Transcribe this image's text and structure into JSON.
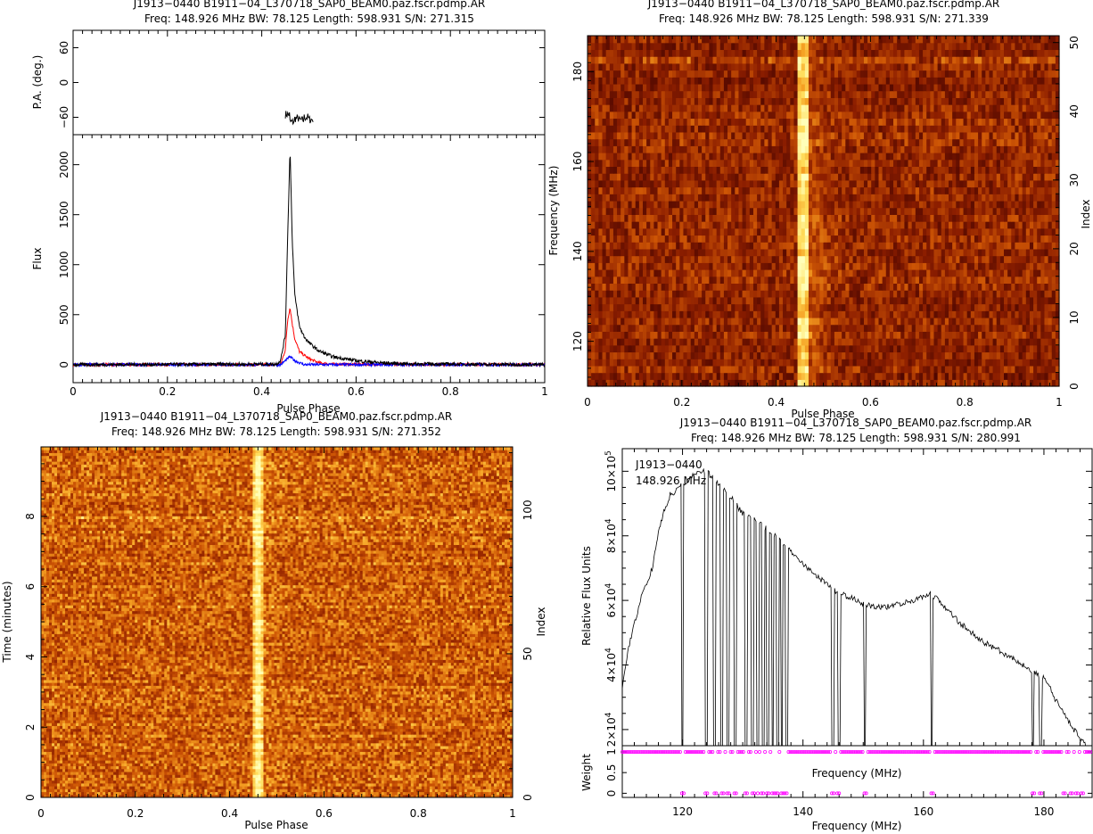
{
  "figures": {
    "profile": {
      "title": "J1913−0440 B1911−04_L370718_SAP0_BEAM0.paz.fscr.pdmp.AR",
      "subtitle": "Freq: 148.926 MHz BW: 78.125 Length: 598.931 S/N: 271.315"
    },
    "freq_phase": {
      "title": "J1913−0440 B1911−04_L370718_SAP0_BEAM0.paz.fscr.pdmp.AR",
      "subtitle": "Freq: 148.926 MHz BW: 78.125 Length: 598.931 S/N: 271.339"
    },
    "time_phase": {
      "title": "J1913−0440 B1911−04_L370718_SAP0_BEAM0.paz.fscr.pdmp.AR",
      "subtitle": "Freq: 148.926 MHz BW: 78.125 Length: 598.931 S/N: 271.352"
    },
    "bandpass": {
      "title": "J1913−0440 B1911−04_L370718_SAP0_BEAM0.paz.fscr.pdmp.AR",
      "subtitle": "Freq: 148.926 MHz BW: 78.125 Length: 598.931 S/N: 280.991",
      "legend_source": "J1913−0440",
      "legend_freq": "148.926 MHz"
    }
  },
  "colors": {
    "total_intensity": "#000000",
    "linear_pol": "#ff0000",
    "circular_pol": "#0000ff",
    "weights": "#ff00ff",
    "heat_low": "#8b1a00",
    "heat_high": "#ffff80"
  },
  "chart_data": [
    {
      "type": "line",
      "panel": "pa",
      "ylabel": "P.A. (deg.)",
      "xlim": [
        0,
        1
      ],
      "ylim": [
        -90,
        90
      ],
      "yticks": [
        "60",
        "0",
        "−60"
      ],
      "x": [
        0.45,
        0.46,
        0.47,
        0.48,
        0.49,
        0.5
      ],
      "y": [
        -55,
        -68,
        -62,
        -65,
        -60,
        -64
      ]
    },
    {
      "type": "line",
      "panel": "profile",
      "xlabel": "Pulse Phase",
      "ylabel": "Flux",
      "xlim": [
        0,
        1
      ],
      "ylim": [
        -180,
        2300
      ],
      "xticks": [
        "0",
        "0.2",
        "0.4",
        "0.6",
        "0.8",
        "1"
      ],
      "yticks": [
        "0",
        "500",
        "1000",
        "1500",
        "2000"
      ],
      "series": [
        {
          "x": [
            0,
            0.43,
            0.44,
            0.45,
            0.455,
            0.46,
            0.465,
            0.47,
            0.48,
            0.49,
            0.5,
            0.52,
            0.55,
            0.6,
            0.65,
            0.7,
            1
          ],
          "y": [
            0,
            5,
            40,
            300,
            1300,
            2150,
            1200,
            700,
            380,
            280,
            220,
            140,
            80,
            40,
            20,
            8,
            0
          ]
        },
        {
          "x": [
            0,
            0.44,
            0.45,
            0.455,
            0.46,
            0.465,
            0.47,
            0.48,
            0.5,
            0.52,
            0.55,
            1
          ],
          "y": [
            0,
            0,
            150,
            450,
            570,
            400,
            260,
            130,
            60,
            20,
            5,
            0
          ]
        },
        {
          "x": [
            0,
            0.44,
            0.455,
            0.46,
            0.47,
            0.49,
            1
          ],
          "y": [
            0,
            0,
            60,
            80,
            40,
            0,
            0
          ]
        }
      ]
    },
    {
      "type": "heatmap",
      "panel": "freq_phase",
      "xlabel": "Pulse Phase",
      "ylabel": "Frequency (MHz)",
      "y2label": "Index",
      "xlim": [
        0,
        1
      ],
      "ylim": [
        110,
        188
      ],
      "y2lim": [
        0,
        51
      ],
      "xticks": [
        "0",
        "0.2",
        "0.4",
        "0.6",
        "0.8",
        "1"
      ],
      "yticks": [
        "120",
        "140",
        "160",
        "180"
      ],
      "y2ticks": [
        "0",
        "10",
        "20",
        "30",
        "40",
        "50"
      ],
      "pulse_phase": 0.46
    },
    {
      "type": "heatmap",
      "panel": "time_phase",
      "xlabel": "Pulse Phase",
      "ylabel": "Time (minutes)",
      "y2label": "Index",
      "xlim": [
        0,
        1
      ],
      "ylim": [
        0,
        9.98
      ],
      "y2lim": [
        0,
        122
      ],
      "xticks": [
        "0",
        "0.2",
        "0.4",
        "0.6",
        "0.8",
        "1"
      ],
      "yticks": [
        "0",
        "2",
        "4",
        "6",
        "8"
      ],
      "y2ticks": [
        "0",
        "50",
        "100"
      ],
      "pulse_phase": 0.46
    },
    {
      "type": "line",
      "panel": "bandpass",
      "xlabel": "Frequency (MHz)",
      "ylabel": "Relative Flux Units",
      "xlim": [
        110,
        188
      ],
      "ylim": [
        15000,
        107000
      ],
      "xticks": [
        "120",
        "140",
        "160",
        "180"
      ],
      "ytick_mantissa": [
        "2",
        "4",
        "6",
        "8",
        "10"
      ],
      "ytick_exponent": [
        "4",
        "4",
        "4",
        "4",
        "5"
      ],
      "x": [
        110,
        111,
        113,
        115,
        116,
        117,
        118,
        119,
        120,
        122,
        124,
        126,
        128,
        130,
        132,
        134,
        136,
        138,
        140,
        142,
        144,
        146,
        148,
        150,
        152,
        154,
        156,
        158,
        160,
        161,
        162,
        164,
        166,
        168,
        170,
        172,
        174,
        176,
        177,
        178,
        179,
        180,
        181,
        182,
        183,
        184,
        185,
        186,
        187,
        188
      ],
      "y": [
        33000,
        45000,
        60000,
        70000,
        81000,
        88000,
        93000,
        94000,
        96000,
        99000,
        100000,
        96000,
        92000,
        87000,
        85000,
        82000,
        79000,
        75000,
        71000,
        68000,
        65000,
        62000,
        61000,
        59000,
        58000,
        58000,
        59000,
        60000,
        61000,
        62000,
        61000,
        57000,
        53000,
        50000,
        47000,
        45000,
        43000,
        41000,
        39000,
        38000,
        37000,
        36000,
        33000,
        29000,
        26000,
        23000,
        20000,
        17000,
        15000,
        13000
      ],
      "notches": [
        120,
        124,
        125.3,
        126.5,
        127.6,
        128.8,
        130.6,
        131.6,
        132.5,
        133.4,
        134.2,
        135,
        135.8,
        136.5,
        137.3,
        145,
        146,
        150.3,
        161.4,
        178.2,
        179.5
      ],
      "weight_ylabel": "Weight",
      "weight_yticks": [
        "0",
        "0.5",
        "1"
      ],
      "weight_xlabel": "Frequency (MHz)",
      "weight_zero_x": [
        120,
        124,
        125.3,
        126.5,
        127.6,
        128.8,
        130.6,
        131.6,
        132.5,
        133.4,
        134.2,
        135,
        135.8,
        136.5,
        137.3,
        145,
        146,
        150.3,
        161.4,
        178.2,
        179.5,
        183.5,
        184.5,
        185.5,
        186.5
      ]
    }
  ]
}
